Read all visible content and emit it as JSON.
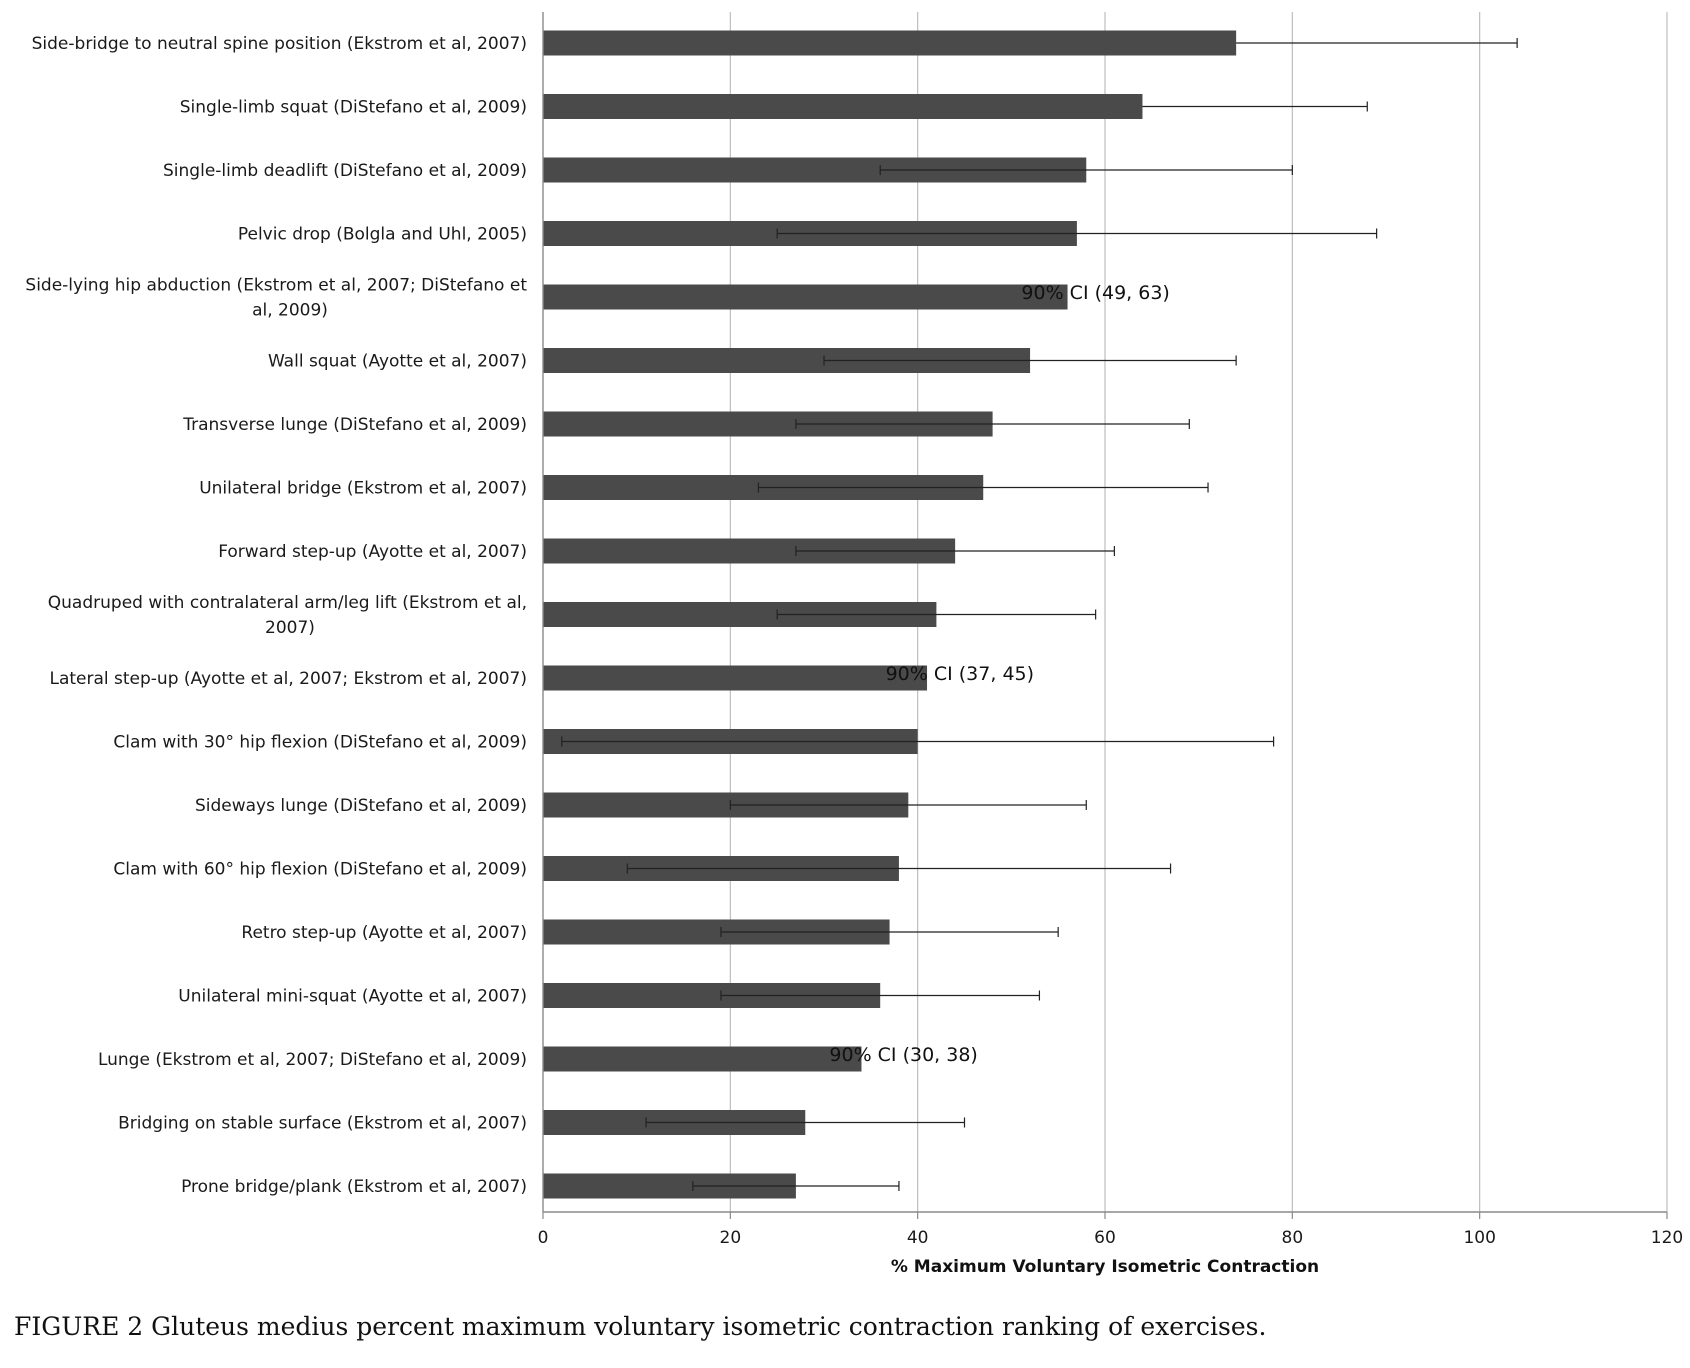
{
  "chart_data": {
    "type": "bar",
    "orientation": "horizontal",
    "categories": [
      [
        "Side-bridge to neutral spine position (Ekstrom et al, 2007)"
      ],
      [
        "Single-limb squat (DiStefano et al, 2009)"
      ],
      [
        "Single-limb deadlift (DiStefano et al, 2009)"
      ],
      [
        "Pelvic drop (Bolgla and Uhl, 2005)"
      ],
      [
        "Side-lying hip abduction (Ekstrom et al, 2007; DiStefano et",
        "al, 2009)"
      ],
      [
        "Wall squat (Ayotte et al, 2007)"
      ],
      [
        "Transverse lunge (DiStefano et al, 2009)"
      ],
      [
        "Unilateral bridge (Ekstrom et al, 2007)"
      ],
      [
        "Forward step-up (Ayotte et al, 2007)"
      ],
      [
        "Quadruped with contralateral arm/leg lift (Ekstrom et al,",
        "2007)"
      ],
      [
        "Lateral step-up (Ayotte et al, 2007; Ekstrom et al, 2007)"
      ],
      [
        "Clam with 30° hip flexion (DiStefano et al, 2009)"
      ],
      [
        "Sideways lunge (DiStefano et al, 2009)"
      ],
      [
        "Clam with 60° hip flexion (DiStefano et al, 2009)"
      ],
      [
        "Retro step-up (Ayotte et al, 2007)"
      ],
      [
        "Unilateral mini-squat (Ayotte et al, 2007)"
      ],
      [
        "Lunge (Ekstrom et al, 2007; DiStefano et al, 2009)"
      ],
      [
        "Bridging on stable surface (Ekstrom et al, 2007)"
      ],
      [
        "Prone bridge/plank (Ekstrom et al, 2007)"
      ]
    ],
    "values": [
      74,
      64,
      58,
      57,
      56,
      52,
      48,
      47,
      44,
      42,
      41,
      40,
      39,
      38,
      37,
      36,
      34,
      28,
      27
    ],
    "error_low": [
      null,
      null,
      36,
      25,
      null,
      30,
      27,
      23,
      27,
      25,
      null,
      2,
      20,
      9,
      19,
      19,
      null,
      11,
      16
    ],
    "error_high": [
      104,
      88,
      80,
      89,
      null,
      74,
      69,
      71,
      61,
      59,
      null,
      78,
      58,
      67,
      55,
      53,
      null,
      45,
      38
    ],
    "annotations": [
      {
        "category_index": 4,
        "text": "90% CI (49, 63)",
        "x": 59
      },
      {
        "category_index": 10,
        "text": "90% CI (37, 45)",
        "x": 44.5
      },
      {
        "category_index": 16,
        "text": "90% CI (30, 38)",
        "x": 38.5
      }
    ],
    "xlabel": "% Maximum Voluntary Isometric Contraction",
    "xlim": [
      0,
      120
    ],
    "xticks": [
      0,
      20,
      40,
      60,
      80,
      100,
      120
    ],
    "grid": "vertical",
    "colors": {
      "bar": "#4a4a4a",
      "grid": "#bdbdbd",
      "axis": "#8a8a8a",
      "error": "#222222"
    }
  },
  "caption": "FIGURE 2    Gluteus medius percent maximum voluntary isometric contraction ranking of exercises."
}
